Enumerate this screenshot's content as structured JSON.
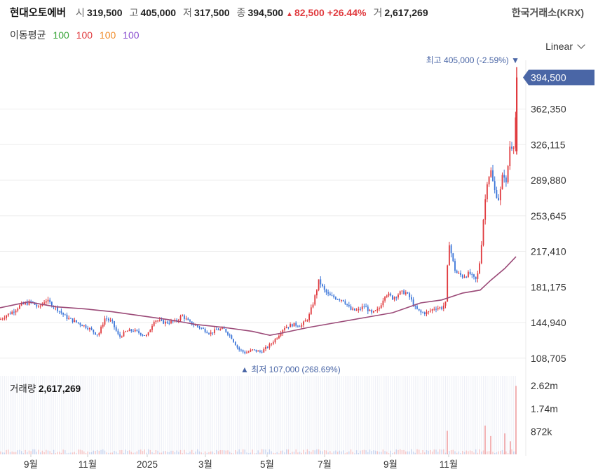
{
  "header": {
    "name": "현대오토에버",
    "open_label": "시",
    "open": "319,500",
    "high_label": "고",
    "high": "405,000",
    "low_label": "저",
    "low": "317,500",
    "close_label": "종",
    "close": "394,500",
    "change_arrow": "▲",
    "change": "82,500",
    "change_pct": "+26.44%",
    "volume_label": "거",
    "volume": "2,617,269",
    "exchange": "한국거래소(KRX)"
  },
  "moving_average": {
    "title": "이동평균",
    "items": [
      {
        "label": "100",
        "color": "#3aa53a"
      },
      {
        "label": "100",
        "color": "#e03a3e"
      },
      {
        "label": "100",
        "color": "#f08c2a"
      },
      {
        "label": "100",
        "color": "#8a4fd0"
      }
    ]
  },
  "scale_selector": {
    "label": "Linear"
  },
  "chart_data": {
    "type": "candlestick",
    "y_axis": {
      "ticks": [
        "108,705",
        "144,940",
        "181,175",
        "217,410",
        "253,645",
        "289,880",
        "326,115",
        "362,350"
      ],
      "min": 95000,
      "max": 412000
    },
    "x_axis": {
      "ticks": [
        "9월",
        "11월",
        "2025",
        "3월",
        "5월",
        "7월",
        "9월",
        "11월"
      ]
    },
    "current_price": {
      "label": "394,500",
      "value": 394500,
      "color": "#4a66a6"
    },
    "max_annotation": {
      "text": "최고 405,000 (-2.59%)",
      "value": 405000,
      "arrow": "▼"
    },
    "min_annotation": {
      "text": "최저 107,000 (268.69%)",
      "value": 107000,
      "arrow": "▲"
    },
    "colors": {
      "up": "#e03a3e",
      "down": "#3a74d8",
      "ma": "#9b4a78",
      "label": "#4a66a6"
    },
    "price_path": [
      [
        0,
        148000
      ],
      [
        8,
        152000
      ],
      [
        18,
        156000
      ],
      [
        30,
        163000
      ],
      [
        45,
        166000
      ],
      [
        55,
        160000
      ],
      [
        65,
        168000
      ],
      [
        80,
        160000
      ],
      [
        95,
        150000
      ],
      [
        110,
        145000
      ],
      [
        125,
        140000
      ],
      [
        140,
        132000
      ],
      [
        150,
        150000
      ],
      [
        160,
        145000
      ],
      [
        170,
        130000
      ],
      [
        180,
        136000
      ],
      [
        190,
        137000
      ],
      [
        200,
        134000
      ],
      [
        210,
        131000
      ],
      [
        220,
        148000
      ],
      [
        235,
        145000
      ],
      [
        250,
        146000
      ],
      [
        260,
        152000
      ],
      [
        270,
        145000
      ],
      [
        285,
        140000
      ],
      [
        300,
        134000
      ],
      [
        310,
        138000
      ],
      [
        320,
        138000
      ],
      [
        330,
        130000
      ],
      [
        340,
        118000
      ],
      [
        350,
        114000
      ],
      [
        360,
        117000
      ],
      [
        372,
        115000
      ],
      [
        385,
        122000
      ],
      [
        395,
        130000
      ],
      [
        405,
        140000
      ],
      [
        418,
        143000
      ],
      [
        430,
        142000
      ],
      [
        440,
        150000
      ],
      [
        448,
        168000
      ],
      [
        455,
        188000
      ],
      [
        462,
        178000
      ],
      [
        470,
        172000
      ],
      [
        480,
        170000
      ],
      [
        490,
        168000
      ],
      [
        500,
        158000
      ],
      [
        510,
        157000
      ],
      [
        520,
        162000
      ],
      [
        530,
        154000
      ],
      [
        540,
        158000
      ],
      [
        550,
        175000
      ],
      [
        560,
        170000
      ],
      [
        570,
        175000
      ],
      [
        578,
        176000
      ],
      [
        585,
        170000
      ],
      [
        592,
        160000
      ],
      [
        600,
        155000
      ],
      [
        610,
        155000
      ],
      [
        620,
        160000
      ],
      [
        630,
        160000
      ],
      [
        636,
        165000
      ],
      [
        640,
        230000
      ],
      [
        645,
        210000
      ],
      [
        650,
        196000
      ],
      [
        660,
        192000
      ],
      [
        670,
        195000
      ],
      [
        675,
        190000
      ],
      [
        680,
        188000
      ],
      [
        685,
        210000
      ],
      [
        690,
        255000
      ],
      [
        695,
        290000
      ],
      [
        700,
        300000
      ],
      [
        705,
        280000
      ],
      [
        712,
        270000
      ],
      [
        718,
        300000
      ],
      [
        722,
        285000
      ],
      [
        728,
        330000
      ],
      [
        732,
        320000
      ],
      [
        736,
        360000
      ],
      [
        738,
        394500
      ]
    ],
    "ma_path": [
      [
        0,
        160000
      ],
      [
        40,
        166000
      ],
      [
        80,
        161000
      ],
      [
        120,
        159000
      ],
      [
        160,
        156000
      ],
      [
        200,
        152000
      ],
      [
        240,
        148000
      ],
      [
        280,
        143000
      ],
      [
        320,
        140000
      ],
      [
        360,
        136000
      ],
      [
        385,
        132000
      ],
      [
        400,
        134000
      ],
      [
        440,
        140000
      ],
      [
        480,
        145000
      ],
      [
        520,
        150000
      ],
      [
        560,
        155000
      ],
      [
        600,
        165000
      ],
      [
        630,
        168000
      ],
      [
        660,
        175000
      ],
      [
        685,
        178000
      ],
      [
        700,
        188000
      ],
      [
        720,
        200000
      ],
      [
        736,
        212000
      ]
    ],
    "volume": {
      "title": "거래량",
      "value": "2,617,269",
      "y_ticks": [
        {
          "label": "2.62m",
          "value": 2620000
        },
        {
          "label": "1.74m",
          "value": 1740000
        },
        {
          "label": "872k",
          "value": 872000
        }
      ],
      "max": 3000000,
      "spikes": [
        [
          638,
          900000
        ],
        [
          692,
          1100000
        ],
        [
          700,
          700000
        ],
        [
          720,
          800000
        ],
        [
          728,
          500000
        ],
        [
          736,
          2617269
        ]
      ]
    }
  }
}
